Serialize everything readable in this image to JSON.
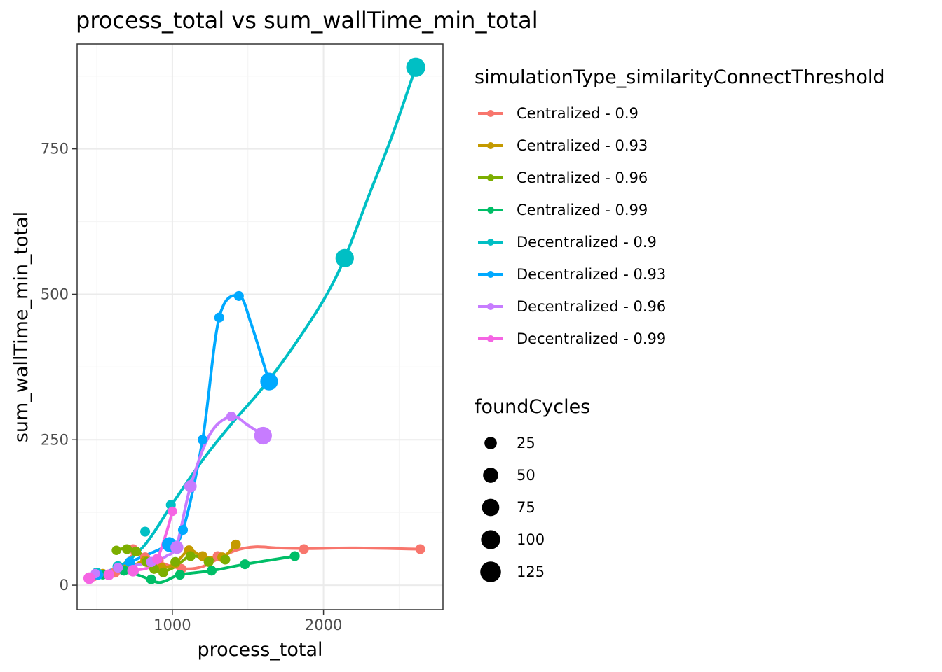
{
  "chart_data": {
    "type": "line",
    "title": "process_total  vs  sum_wallTime_min_total",
    "xlabel": "process_total",
    "ylabel": "sum_wallTime_min_total",
    "xlim": [
      370,
      2790
    ],
    "ylim": [
      -42,
      930
    ],
    "x_ticks": [
      1000,
      2000
    ],
    "x_tick_labels": [
      "1000",
      "2000"
    ],
    "y_ticks": [
      0,
      250,
      500,
      750
    ],
    "y_tick_labels": [
      "0",
      "250",
      "500",
      "750"
    ],
    "grid": true,
    "colors": {
      "background": "#ffffff",
      "panel_border": "#333333",
      "grid_major": "#ebebeb",
      "grid_minor": "#f5f5f5"
    },
    "color_legend": {
      "title": "simulationType_similarityConnectThreshold",
      "placement": "right"
    },
    "size_legend": {
      "title": "foundCycles",
      "placement": "right",
      "entries": [
        {
          "label": "25",
          "value": 25
        },
        {
          "label": "50",
          "value": 50
        },
        {
          "label": "75",
          "value": 75
        },
        {
          "label": "100",
          "value": 100
        },
        {
          "label": "125",
          "value": 125
        }
      ]
    },
    "series": [
      {
        "name": "Centralized - 0.9",
        "color": "#F8766D",
        "points": [
          [
            480,
            15,
            8
          ],
          [
            620,
            22,
            12
          ],
          [
            740,
            62,
            10
          ],
          [
            820,
            48,
            10
          ],
          [
            910,
            42,
            10
          ],
          [
            1060,
            28,
            10
          ],
          [
            1300,
            50,
            10
          ],
          [
            1870,
            62,
            10
          ],
          [
            2640,
            62,
            10
          ]
        ],
        "curve": [
          [
            470,
            14
          ],
          [
            620,
            22
          ],
          [
            740,
            52
          ],
          [
            820,
            48
          ],
          [
            910,
            40
          ],
          [
            1000,
            32
          ],
          [
            1100,
            28
          ],
          [
            1200,
            32
          ],
          [
            1300,
            45
          ],
          [
            1420,
            60
          ],
          [
            1550,
            66
          ],
          [
            1700,
            64
          ],
          [
            1900,
            63
          ],
          [
            2200,
            64
          ],
          [
            2640,
            62
          ]
        ]
      },
      {
        "name": "Centralized - 0.93",
        "color": "#C49A00",
        "points": [
          [
            540,
            20,
            8
          ],
          [
            700,
            28,
            12
          ],
          [
            820,
            42,
            10
          ],
          [
            930,
            30,
            10
          ],
          [
            1020,
            38,
            10
          ],
          [
            1110,
            60,
            10
          ],
          [
            1200,
            50,
            10
          ],
          [
            1330,
            48,
            10
          ],
          [
            1420,
            70,
            10
          ]
        ],
        "curve": [
          [
            540,
            20
          ],
          [
            700,
            28
          ],
          [
            820,
            42
          ],
          [
            930,
            30
          ],
          [
            1020,
            38
          ],
          [
            1110,
            60
          ],
          [
            1200,
            50
          ],
          [
            1330,
            48
          ],
          [
            1420,
            70
          ]
        ]
      },
      {
        "name": "Centralized - 0.96",
        "color": "#7CAE00",
        "points": [
          [
            630,
            60,
            8
          ],
          [
            700,
            62,
            10
          ],
          [
            760,
            58,
            10
          ],
          [
            830,
            40,
            10
          ],
          [
            880,
            28,
            10
          ],
          [
            940,
            22,
            10
          ],
          [
            1020,
            40,
            10
          ],
          [
            1120,
            50,
            10
          ],
          [
            1240,
            40,
            10
          ],
          [
            1350,
            44,
            10
          ]
        ],
        "curve": [
          [
            630,
            60
          ],
          [
            700,
            64
          ],
          [
            760,
            60
          ],
          [
            830,
            45
          ],
          [
            880,
            30
          ],
          [
            940,
            24
          ],
          [
            1020,
            32
          ],
          [
            1120,
            50
          ],
          [
            1240,
            45
          ],
          [
            1350,
            46
          ]
        ]
      },
      {
        "name": "Centralized - 0.99",
        "color": "#00BE67",
        "points": [
          [
            540,
            18,
            8
          ],
          [
            680,
            25,
            10
          ],
          [
            860,
            10,
            10
          ],
          [
            1050,
            18,
            10
          ],
          [
            1260,
            25,
            10
          ],
          [
            1480,
            36,
            10
          ],
          [
            1810,
            50,
            10
          ]
        ],
        "curve": [
          [
            540,
            18
          ],
          [
            680,
            24
          ],
          [
            800,
            15
          ],
          [
            900,
            5
          ],
          [
            960,
            8
          ],
          [
            1050,
            18
          ],
          [
            1260,
            25
          ],
          [
            1480,
            36
          ],
          [
            1810,
            50
          ]
        ]
      },
      {
        "name": "Decentralized - 0.9",
        "color": "#00BFC4",
        "points": [
          [
            500,
            20,
            20
          ],
          [
            640,
            32,
            15
          ],
          [
            820,
            92,
            10
          ],
          [
            990,
            138,
            10
          ],
          [
            2140,
            562,
            90
          ],
          [
            2610,
            890,
            100
          ]
        ],
        "curve": [
          [
            480,
            15
          ],
          [
            640,
            30
          ],
          [
            820,
            70
          ],
          [
            1000,
            140
          ],
          [
            1200,
            215
          ],
          [
            1400,
            280
          ],
          [
            1600,
            340
          ],
          [
            1800,
            410
          ],
          [
            2000,
            490
          ],
          [
            2140,
            562
          ],
          [
            2300,
            670
          ],
          [
            2450,
            770
          ],
          [
            2610,
            890
          ]
        ]
      },
      {
        "name": "Decentralized - 0.93",
        "color": "#00A9FF",
        "points": [
          [
            510,
            18,
            10
          ],
          [
            720,
            40,
            12
          ],
          [
            980,
            70,
            45
          ],
          [
            1070,
            95,
            10
          ],
          [
            1200,
            250,
            10
          ],
          [
            1310,
            460,
            10
          ],
          [
            1440,
            497,
            10
          ],
          [
            1640,
            350,
            80
          ]
        ],
        "curve": [
          [
            480,
            14
          ],
          [
            720,
            40
          ],
          [
            980,
            70
          ],
          [
            1070,
            95
          ],
          [
            1200,
            250
          ],
          [
            1310,
            460
          ],
          [
            1440,
            497
          ],
          [
            1520,
            450
          ],
          [
            1640,
            350
          ]
        ]
      },
      {
        "name": "Decentralized - 0.96",
        "color": "#C77CFF",
        "points": [
          [
            490,
            20,
            8
          ],
          [
            640,
            30,
            10
          ],
          [
            860,
            40,
            12
          ],
          [
            1030,
            65,
            30
          ],
          [
            1120,
            170,
            25
          ],
          [
            1390,
            290,
            10
          ],
          [
            1600,
            257,
            80
          ]
        ],
        "curve": [
          [
            480,
            16
          ],
          [
            640,
            28
          ],
          [
            860,
            40
          ],
          [
            960,
            50
          ],
          [
            1030,
            70
          ],
          [
            1120,
            170
          ],
          [
            1250,
            260
          ],
          [
            1390,
            290
          ],
          [
            1500,
            275
          ],
          [
            1600,
            257
          ]
        ]
      },
      {
        "name": "Decentralized - 0.99",
        "color": "#F564E3",
        "points": [
          [
            450,
            12,
            20
          ],
          [
            580,
            18,
            15
          ],
          [
            740,
            25,
            20
          ],
          [
            900,
            45,
            12
          ],
          [
            1000,
            127,
            8
          ]
        ],
        "curve": [
          [
            450,
            12
          ],
          [
            580,
            18
          ],
          [
            740,
            25
          ],
          [
            840,
            30
          ],
          [
            900,
            45
          ],
          [
            960,
            90
          ],
          [
            1000,
            127
          ]
        ]
      }
    ]
  }
}
